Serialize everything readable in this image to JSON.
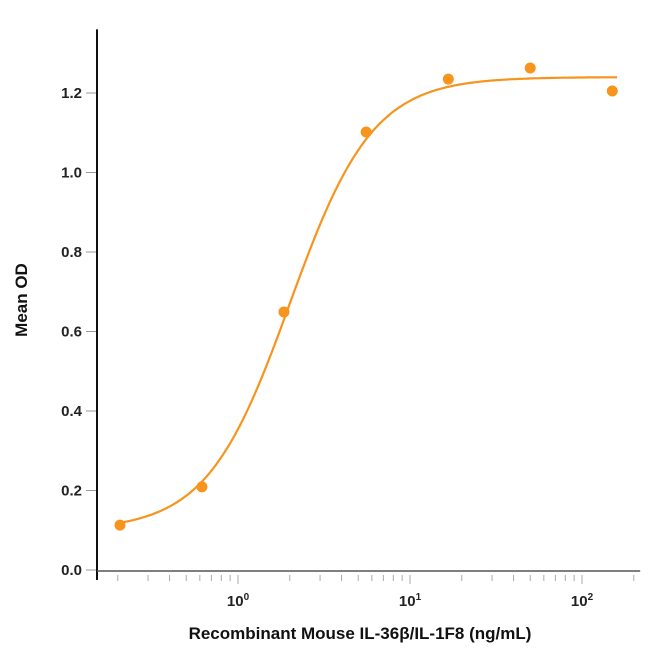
{
  "chart_data": {
    "type": "scatter",
    "title": "",
    "xlabel": "Recombinant Mouse IL-36β/IL-1F8 (ng/mL)",
    "ylabel": "Mean OD",
    "xscale": "log",
    "xlim": [
      0.15,
      218
    ],
    "ylim": [
      0,
      1.36
    ],
    "x_ticks": [
      {
        "base": "10",
        "exp": "0",
        "value": 1
      },
      {
        "base": "10",
        "exp": "1",
        "value": 10
      },
      {
        "base": "10",
        "exp": "2",
        "value": 100
      }
    ],
    "y_ticks": [
      "0.0",
      "0.2",
      "0.4",
      "0.6",
      "0.8",
      "1.0",
      "1.2"
    ],
    "grid": false,
    "color": "#F7941D",
    "series": [
      {
        "name": "Mean OD",
        "x": [
          0.206,
          0.617,
          1.85,
          5.56,
          16.7,
          50,
          150
        ],
        "y": [
          0.113,
          0.209,
          0.649,
          1.102,
          1.235,
          1.263,
          1.205
        ]
      }
    ],
    "fit": {
      "model": "4PL",
      "bottom": 0.1,
      "top": 1.24,
      "ec50": 2.0,
      "hill": 1.8
    }
  }
}
